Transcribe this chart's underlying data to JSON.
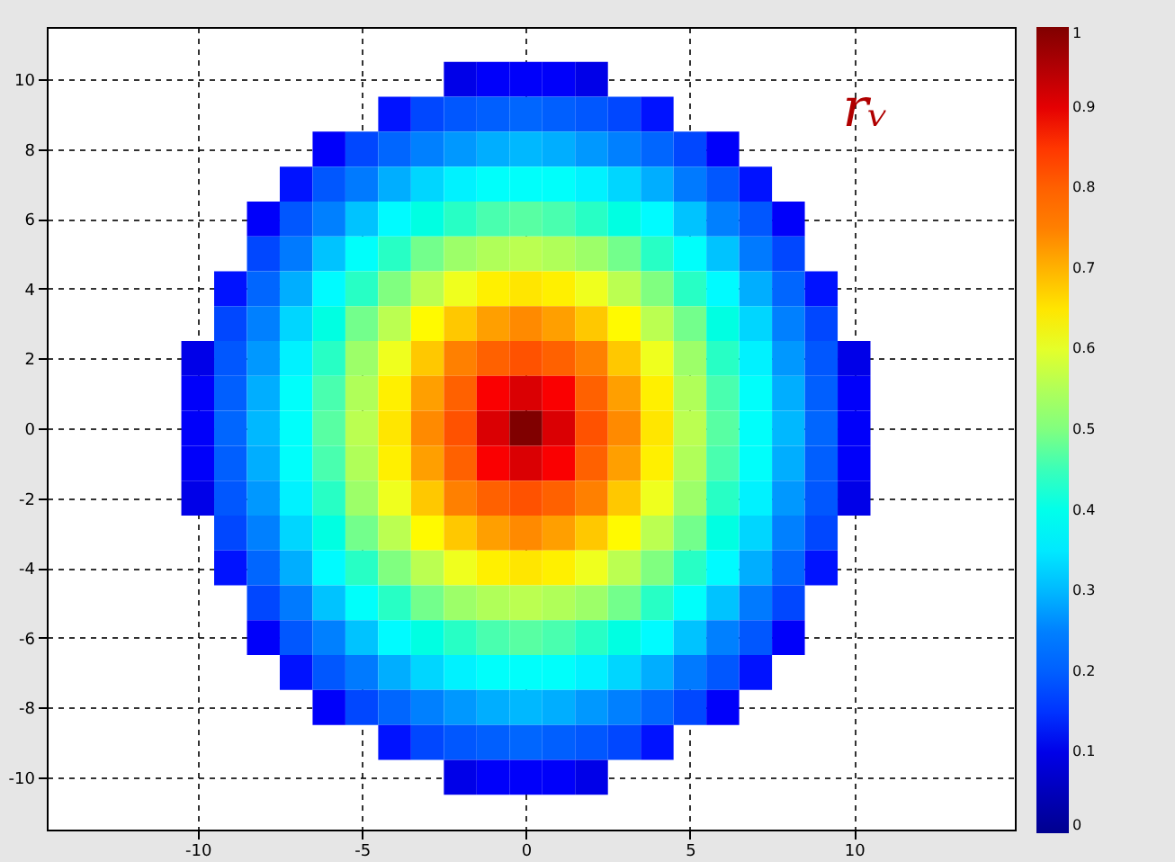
{
  "chart_data": {
    "type": "heatmap",
    "x": [
      -10,
      -9,
      -8,
      -7,
      -6,
      -5,
      -4,
      -3,
      -2,
      -1,
      0,
      1,
      2,
      3,
      4,
      5,
      6,
      7,
      8,
      9,
      10
    ],
    "y": [
      10,
      9,
      8,
      7,
      6,
      5,
      4,
      3,
      2,
      1,
      0,
      -1,
      -2,
      -3,
      -4,
      -5,
      -6,
      -7,
      -8,
      -9,
      -10
    ],
    "cells": [
      [
        null,
        null,
        null,
        null,
        null,
        null,
        null,
        null,
        0.1,
        0.12,
        0.12,
        0.12,
        0.1,
        null,
        null,
        null,
        null,
        null,
        null,
        null,
        null
      ],
      [
        null,
        null,
        null,
        null,
        null,
        null,
        0.13,
        0.17,
        0.19,
        0.2,
        0.21,
        0.2,
        0.19,
        0.17,
        0.13,
        null,
        null,
        null,
        null,
        null,
        null
      ],
      [
        null,
        null,
        null,
        null,
        0.12,
        0.17,
        0.21,
        0.25,
        0.27,
        0.29,
        0.3,
        0.29,
        0.27,
        0.25,
        0.21,
        0.17,
        0.12,
        null,
        null,
        null,
        null
      ],
      [
        null,
        null,
        null,
        0.13,
        0.19,
        0.24,
        0.29,
        0.33,
        0.36,
        0.38,
        0.38,
        0.38,
        0.36,
        0.33,
        0.29,
        0.24,
        0.19,
        0.13,
        null,
        null,
        null
      ],
      [
        null,
        null,
        0.12,
        0.19,
        0.25,
        0.31,
        0.37,
        0.41,
        0.44,
        0.46,
        0.47,
        0.46,
        0.44,
        0.41,
        0.37,
        0.31,
        0.25,
        0.19,
        0.12,
        null,
        null
      ],
      [
        null,
        null,
        0.17,
        0.24,
        0.31,
        0.38,
        0.44,
        0.49,
        0.53,
        0.55,
        0.56,
        0.55,
        0.53,
        0.49,
        0.44,
        0.38,
        0.31,
        0.24,
        0.17,
        null,
        null
      ],
      [
        null,
        0.13,
        0.21,
        0.29,
        0.37,
        0.44,
        0.5,
        0.56,
        0.61,
        0.64,
        0.65,
        0.64,
        0.61,
        0.56,
        0.5,
        0.44,
        0.37,
        0.29,
        0.21,
        0.13,
        null
      ],
      [
        null,
        0.17,
        0.25,
        0.33,
        0.41,
        0.49,
        0.56,
        0.63,
        0.68,
        0.72,
        0.74,
        0.72,
        0.68,
        0.63,
        0.56,
        0.49,
        0.41,
        0.33,
        0.25,
        0.17,
        null
      ],
      [
        0.1,
        0.19,
        0.27,
        0.36,
        0.44,
        0.53,
        0.61,
        0.68,
        0.75,
        0.8,
        0.82,
        0.8,
        0.75,
        0.68,
        0.61,
        0.53,
        0.44,
        0.36,
        0.27,
        0.19,
        0.1
      ],
      [
        0.12,
        0.2,
        0.29,
        0.38,
        0.46,
        0.55,
        0.64,
        0.72,
        0.8,
        0.88,
        0.91,
        0.88,
        0.8,
        0.72,
        0.64,
        0.55,
        0.46,
        0.38,
        0.29,
        0.2,
        0.12
      ],
      [
        0.12,
        0.21,
        0.3,
        0.38,
        0.47,
        0.56,
        0.65,
        0.74,
        0.82,
        0.91,
        1.0,
        0.91,
        0.82,
        0.74,
        0.65,
        0.56,
        0.47,
        0.38,
        0.3,
        0.21,
        0.12
      ],
      [
        0.12,
        0.2,
        0.29,
        0.38,
        0.46,
        0.55,
        0.64,
        0.72,
        0.8,
        0.88,
        0.91,
        0.88,
        0.8,
        0.72,
        0.64,
        0.55,
        0.46,
        0.38,
        0.29,
        0.2,
        0.12
      ],
      [
        0.1,
        0.19,
        0.27,
        0.36,
        0.44,
        0.53,
        0.61,
        0.68,
        0.75,
        0.8,
        0.82,
        0.8,
        0.75,
        0.68,
        0.61,
        0.53,
        0.44,
        0.36,
        0.27,
        0.19,
        0.1
      ],
      [
        null,
        0.17,
        0.25,
        0.33,
        0.41,
        0.49,
        0.56,
        0.63,
        0.68,
        0.72,
        0.74,
        0.72,
        0.68,
        0.63,
        0.56,
        0.49,
        0.41,
        0.33,
        0.25,
        0.17,
        null
      ],
      [
        null,
        0.13,
        0.21,
        0.29,
        0.37,
        0.44,
        0.5,
        0.56,
        0.61,
        0.64,
        0.65,
        0.64,
        0.61,
        0.56,
        0.5,
        0.44,
        0.37,
        0.29,
        0.21,
        0.13,
        null
      ],
      [
        null,
        null,
        0.17,
        0.24,
        0.31,
        0.38,
        0.44,
        0.49,
        0.53,
        0.55,
        0.56,
        0.55,
        0.53,
        0.49,
        0.44,
        0.38,
        0.31,
        0.24,
        0.17,
        null,
        null
      ],
      [
        null,
        null,
        0.12,
        0.19,
        0.25,
        0.31,
        0.37,
        0.41,
        0.44,
        0.46,
        0.47,
        0.46,
        0.44,
        0.41,
        0.37,
        0.31,
        0.25,
        0.19,
        0.12,
        null,
        null
      ],
      [
        null,
        null,
        null,
        0.13,
        0.19,
        0.24,
        0.29,
        0.33,
        0.36,
        0.38,
        0.38,
        0.38,
        0.36,
        0.33,
        0.29,
        0.24,
        0.19,
        0.13,
        null,
        null,
        null
      ],
      [
        null,
        null,
        null,
        null,
        0.12,
        0.17,
        0.21,
        0.25,
        0.27,
        0.29,
        0.3,
        0.29,
        0.27,
        0.25,
        0.21,
        0.17,
        0.12,
        null,
        null,
        null,
        null
      ],
      [
        null,
        null,
        null,
        null,
        null,
        null,
        0.13,
        0.17,
        0.19,
        0.2,
        0.21,
        0.2,
        0.19,
        0.17,
        0.13,
        null,
        null,
        null,
        null,
        null,
        null
      ],
      [
        null,
        null,
        null,
        null,
        null,
        null,
        null,
        null,
        0.1,
        0.12,
        0.12,
        0.12,
        0.1,
        null,
        null,
        null,
        null,
        null,
        null,
        null,
        null
      ]
    ],
    "xlim": [
      -14.6,
      14.9
    ],
    "ylim": [
      -11.5,
      11.5
    ],
    "xticks": [
      -10,
      -5,
      0,
      5,
      10
    ],
    "yticks": [
      -10,
      -8,
      -6,
      -4,
      -2,
      0,
      2,
      4,
      6,
      8,
      10
    ],
    "clim": [
      0,
      1
    ],
    "cticks": [
      0,
      0.1,
      0.2,
      0.3,
      0.4,
      0.5,
      0.6,
      0.7,
      0.8,
      0.9,
      1
    ],
    "grid": true,
    "annotations": [
      "rᵥ"
    ]
  }
}
